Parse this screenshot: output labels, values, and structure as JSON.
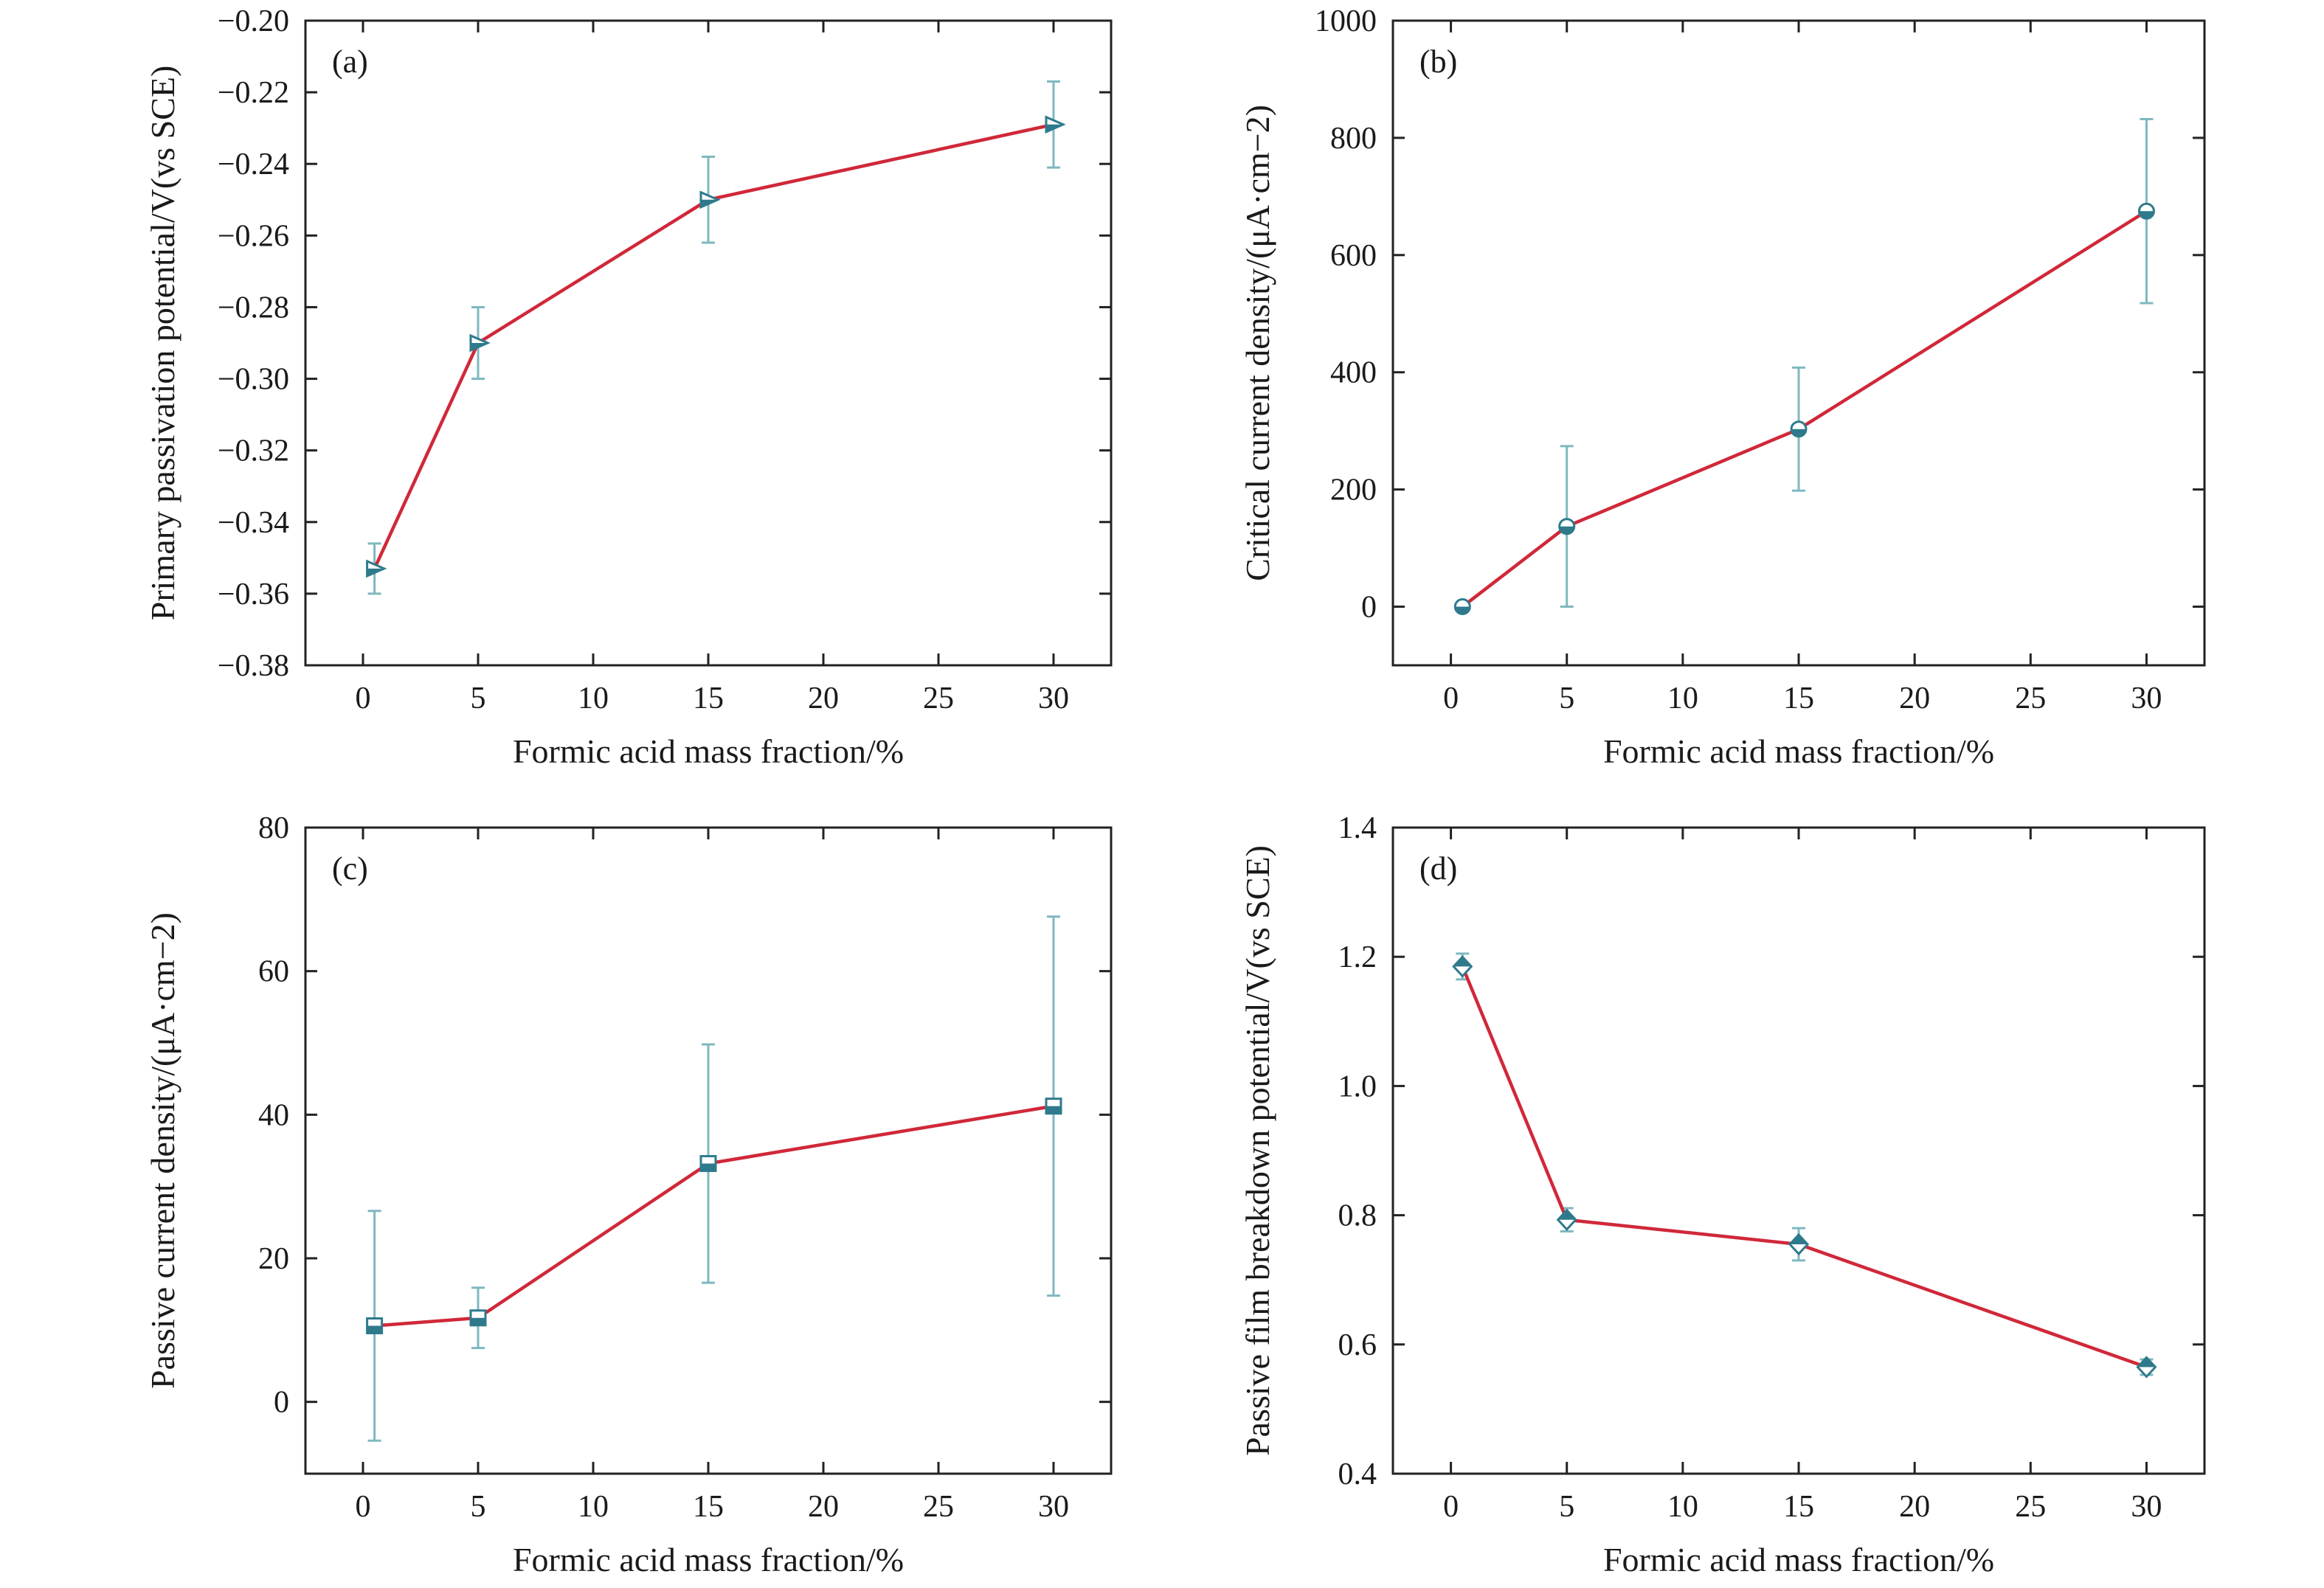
{
  "chart_data": [
    {
      "type": "line",
      "panel_label": "(a)",
      "xlabel": "Formic acid mass fraction/%",
      "ylabel": "Primary passivation potential/V(vs SCE)",
      "xlim": [
        -2.5,
        32.5
      ],
      "ylim": [
        -0.38,
        -0.2
      ],
      "xticks": [
        0,
        5,
        10,
        15,
        20,
        25,
        30
      ],
      "xtick_labels": [
        "0",
        "5",
        "10",
        "15",
        "20",
        "25",
        "30"
      ],
      "yticks": [
        -0.38,
        -0.36,
        -0.34,
        -0.32,
        -0.3,
        -0.28,
        -0.26,
        -0.24,
        -0.22,
        -0.2
      ],
      "ytick_labels": [
        "−0.38",
        "−0.36",
        "−0.34",
        "−0.32",
        "−0.30",
        "−0.28",
        "−0.26",
        "−0.24",
        "−0.22",
        "−0.20"
      ],
      "marker": "triangle-right",
      "line_color": "#d02839",
      "errorbar_color": "#7fb8c0",
      "marker_color": "#2e7a8c",
      "x": [
        0.5,
        5,
        15,
        30
      ],
      "y": [
        -0.353,
        -0.29,
        -0.25,
        -0.229
      ],
      "error": [
        0.007,
        0.01,
        0.012,
        0.012
      ]
    },
    {
      "type": "line",
      "panel_label": "(b)",
      "xlabel": "Formic acid mass fraction/%",
      "ylabel": "Critical current density/(μA·cm−2)",
      "xlim": [
        -2.5,
        32.5
      ],
      "ylim": [
        -100,
        1000
      ],
      "xticks": [
        0,
        5,
        10,
        15,
        20,
        25,
        30
      ],
      "xtick_labels": [
        "0",
        "5",
        "10",
        "15",
        "20",
        "25",
        "30"
      ],
      "yticks": [
        0,
        200,
        400,
        600,
        800,
        1000
      ],
      "ytick_labels": [
        "0",
        "200",
        "400",
        "600",
        "800",
        "1000"
      ],
      "marker": "circle",
      "line_color": "#d02839",
      "errorbar_color": "#7fb8c0",
      "marker_color": "#2e7a8c",
      "x": [
        0.5,
        5,
        15,
        30
      ],
      "y": [
        0,
        137,
        303,
        675
      ],
      "error": [
        0,
        137,
        105,
        157
      ]
    },
    {
      "type": "line",
      "panel_label": "(c)",
      "xlabel": "Formic acid mass fraction/%",
      "ylabel": "Passive current density/(μA·cm−2)",
      "xlim": [
        -2.5,
        32.5
      ],
      "ylim": [
        -10,
        80
      ],
      "xticks": [
        0,
        5,
        10,
        15,
        20,
        25,
        30
      ],
      "xtick_labels": [
        "0",
        "5",
        "10",
        "15",
        "20",
        "25",
        "30"
      ],
      "yticks": [
        0,
        20,
        40,
        60,
        80
      ],
      "ytick_labels": [
        "0",
        "20",
        "40",
        "60",
        "80"
      ],
      "marker": "square",
      "line_color": "#d02839",
      "errorbar_color": "#7fb8c0",
      "marker_color": "#2e7a8c",
      "x": [
        0.5,
        5,
        15,
        30
      ],
      "y": [
        10.6,
        11.7,
        33.2,
        41.2
      ],
      "error": [
        16.0,
        4.2,
        16.6,
        26.4
      ]
    },
    {
      "type": "line",
      "panel_label": "(d)",
      "xlabel": "Formic acid mass fraction/%",
      "ylabel": "Passive film breakdown potential/V(vs SCE)",
      "xlim": [
        -2.5,
        32.5
      ],
      "ylim": [
        0.4,
        1.4
      ],
      "xticks": [
        0,
        5,
        10,
        15,
        20,
        25,
        30
      ],
      "xtick_labels": [
        "0",
        "5",
        "10",
        "15",
        "20",
        "25",
        "30"
      ],
      "yticks": [
        0.4,
        0.6,
        0.8,
        1.0,
        1.2,
        1.4
      ],
      "ytick_labels": [
        "0.4",
        "0.6",
        "0.8",
        "1.0",
        "1.2",
        "1.4"
      ],
      "marker": "diamond",
      "line_color": "#d02839",
      "errorbar_color": "#7fb8c0",
      "marker_color": "#2e7a8c",
      "x": [
        0.5,
        5,
        15,
        30
      ],
      "y": [
        1.185,
        0.793,
        0.755,
        0.565
      ],
      "error": [
        0.02,
        0.018,
        0.025,
        0.012
      ]
    }
  ]
}
